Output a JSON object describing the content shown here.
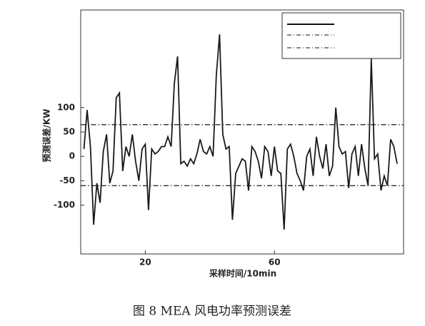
{
  "chart_data": {
    "type": "line",
    "caption": "图 8   MEA 风电功率预测误差",
    "x_label": "采样时间/10min",
    "y_label": "预测误差/KW",
    "x": [
      1,
      2,
      3,
      4,
      5,
      6,
      7,
      8,
      9,
      10,
      11,
      12,
      13,
      14,
      15,
      16,
      17,
      18,
      19,
      20,
      21,
      22,
      23,
      24,
      25,
      26,
      27,
      28,
      29,
      30,
      31,
      32,
      33,
      34,
      35,
      36,
      37,
      38,
      39,
      40,
      41,
      42,
      43,
      44,
      45,
      46,
      47,
      48,
      49,
      50,
      51,
      52,
      53,
      54,
      55,
      56,
      57,
      58,
      59,
      60,
      61,
      62,
      63,
      64,
      65,
      66,
      67,
      68,
      69,
      70,
      71,
      72,
      73,
      74,
      75,
      76,
      77,
      78,
      79,
      80,
      81,
      82,
      83,
      84,
      85,
      86,
      87,
      88,
      89,
      90,
      91,
      92,
      93,
      94,
      95,
      96,
      97,
      98
    ],
    "series": [
      {
        "color": "#1a1a1a",
        "values": [
          15,
          95,
          20,
          -140,
          -55,
          -95,
          10,
          45,
          -55,
          -30,
          120,
          130,
          -30,
          20,
          0,
          45,
          -10,
          -50,
          15,
          25,
          -110,
          15,
          5,
          10,
          20,
          20,
          40,
          20,
          150,
          205,
          -15,
          -10,
          -20,
          -5,
          -15,
          5,
          35,
          10,
          5,
          20,
          0,
          165,
          250,
          45,
          15,
          20,
          -130,
          -35,
          -20,
          -5,
          -10,
          -70,
          20,
          10,
          -10,
          -45,
          20,
          10,
          -40,
          20,
          -30,
          -35,
          -150,
          15,
          25,
          0,
          -35,
          -50,
          -70,
          0,
          15,
          -40,
          40,
          0,
          -25,
          25,
          -40,
          -20,
          100,
          20,
          5,
          10,
          -65,
          5,
          20,
          -40,
          25,
          -25,
          -60,
          200,
          -5,
          5,
          -70,
          -40,
          -60,
          35,
          20,
          -15
        ]
      }
    ],
    "reference_lines": [
      {
        "value": 65,
        "color": "#1a1a1a"
      },
      {
        "value": -60,
        "color": "#1a1a1a"
      }
    ],
    "xlim": [
      0,
      100
    ],
    "xticks": [
      20,
      60
    ],
    "ylim": [
      -200,
      300
    ],
    "yticks": [
      100,
      50,
      0,
      -50,
      -100
    ]
  }
}
